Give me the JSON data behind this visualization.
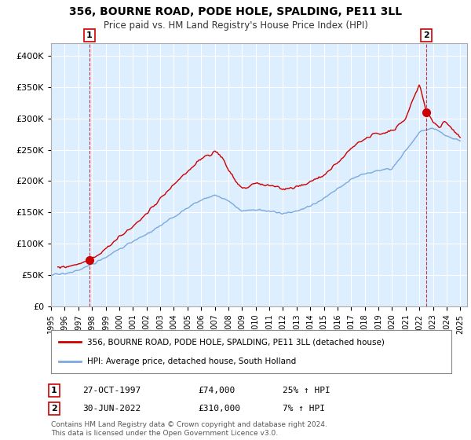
{
  "title1": "356, BOURNE ROAD, PODE HOLE, SPALDING, PE11 3LL",
  "title2": "Price paid vs. HM Land Registry's House Price Index (HPI)",
  "ytick_vals": [
    0,
    50000,
    100000,
    150000,
    200000,
    250000,
    300000,
    350000,
    400000
  ],
  "ylim": [
    0,
    420000
  ],
  "xlim_start": 1995.0,
  "xlim_end": 2025.5,
  "xtick_years": [
    1995,
    1996,
    1997,
    1998,
    1999,
    2000,
    2001,
    2002,
    2003,
    2004,
    2005,
    2006,
    2007,
    2008,
    2009,
    2010,
    2011,
    2012,
    2013,
    2014,
    2015,
    2016,
    2017,
    2018,
    2019,
    2020,
    2021,
    2022,
    2023,
    2024,
    2025
  ],
  "sale1_x": 1997.82,
  "sale1_y": 74000,
  "sale2_x": 2022.5,
  "sale2_y": 310000,
  "legend_red": "356, BOURNE ROAD, PODE HOLE, SPALDING, PE11 3LL (detached house)",
  "legend_blue": "HPI: Average price, detached house, South Holland",
  "ann1_date": "27-OCT-1997",
  "ann1_price": "£74,000",
  "ann1_hpi": "25% ↑ HPI",
  "ann2_date": "30-JUN-2022",
  "ann2_price": "£310,000",
  "ann2_hpi": "7% ↑ HPI",
  "footer": "Contains HM Land Registry data © Crown copyright and database right 2024.\nThis data is licensed under the Open Government Licence v3.0.",
  "red_color": "#cc0000",
  "blue_color": "#7aaadd",
  "chart_bg": "#ddeeff",
  "background_color": "#ffffff",
  "grid_color": "#ffffff",
  "hpi_anchors_x": [
    1995,
    1996,
    1997,
    1998,
    1999,
    2000,
    2001,
    2002,
    2003,
    2004,
    2005,
    2006,
    2007,
    2008,
    2009,
    2010,
    2011,
    2012,
    2013,
    2014,
    2015,
    2016,
    2017,
    2018,
    2019,
    2020,
    2021,
    2022,
    2023,
    2024,
    2025
  ],
  "hpi_anchors_y": [
    50000,
    52000,
    58000,
    67000,
    78000,
    92000,
    103000,
    115000,
    128000,
    143000,
    157000,
    170000,
    178000,
    168000,
    152000,
    155000,
    152000,
    148000,
    152000,
    160000,
    172000,
    188000,
    203000,
    212000,
    218000,
    220000,
    248000,
    278000,
    285000,
    272000,
    265000
  ],
  "prop_anchors_x": [
    1995.5,
    1996.5,
    1997.0,
    1997.5,
    1997.82,
    1998.5,
    1999,
    2000,
    2001,
    2002,
    2003,
    2004,
    2005,
    2006,
    2007.0,
    2007.5,
    2008.0,
    2008.5,
    2009.0,
    2009.5,
    2010,
    2011,
    2012,
    2013,
    2014,
    2015,
    2016,
    2017,
    2018,
    2019,
    2020,
    2021,
    2021.5,
    2022.0,
    2022.5,
    2023.0,
    2023.5,
    2024.0,
    2024.5,
    2025.0
  ],
  "prop_anchors_y": [
    62000,
    65000,
    68000,
    70000,
    74000,
    82000,
    92000,
    110000,
    128000,
    148000,
    170000,
    195000,
    215000,
    235000,
    247000,
    240000,
    220000,
    200000,
    188000,
    192000,
    196000,
    192000,
    188000,
    190000,
    198000,
    210000,
    228000,
    252000,
    268000,
    275000,
    280000,
    300000,
    330000,
    355000,
    310000,
    295000,
    285000,
    295000,
    280000,
    270000
  ]
}
